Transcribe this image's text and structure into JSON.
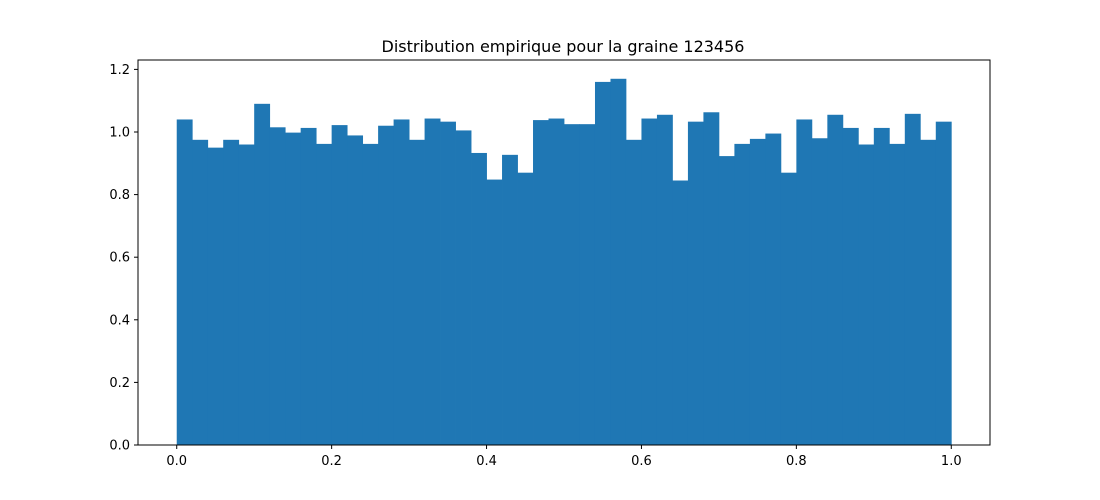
{
  "chart_data": {
    "type": "bar",
    "title": "Distribution empirique pour la graine 123456",
    "xlabel": "",
    "ylabel": "",
    "xlim": [
      -0.05,
      1.05
    ],
    "ylim": [
      0,
      1.23
    ],
    "grid": false,
    "bar_color": "#1f77b4",
    "bin_edges": [
      0.0,
      1.0
    ],
    "bin_count": 50,
    "values": [
      1.04,
      0.975,
      0.95,
      0.975,
      0.96,
      1.09,
      1.015,
      0.998,
      1.013,
      0.962,
      1.022,
      0.989,
      0.962,
      1.02,
      1.04,
      0.975,
      1.043,
      1.033,
      1.005,
      0.933,
      0.848,
      0.927,
      0.87,
      1.038,
      1.043,
      1.025,
      1.025,
      1.16,
      1.17,
      0.975,
      1.043,
      1.055,
      0.845,
      1.033,
      1.063,
      0.923,
      0.962,
      0.978,
      0.995,
      0.87,
      1.04,
      0.98,
      1.055,
      1.013,
      0.96,
      1.013,
      0.962,
      1.058,
      0.975,
      1.033
    ],
    "x_ticks": [
      {
        "value": 0.0,
        "label": "0.0"
      },
      {
        "value": 0.2,
        "label": "0.2"
      },
      {
        "value": 0.4,
        "label": "0.4"
      },
      {
        "value": 0.6,
        "label": "0.6"
      },
      {
        "value": 0.8,
        "label": "0.8"
      },
      {
        "value": 1.0,
        "label": "1.0"
      }
    ],
    "y_ticks": [
      {
        "value": 0.0,
        "label": "0.0"
      },
      {
        "value": 0.2,
        "label": "0.2"
      },
      {
        "value": 0.4,
        "label": "0.4"
      },
      {
        "value": 0.6,
        "label": "0.6"
      },
      {
        "value": 0.8,
        "label": "0.8"
      },
      {
        "value": 1.0,
        "label": "1.0"
      },
      {
        "value": 1.2,
        "label": "1.2"
      }
    ]
  }
}
